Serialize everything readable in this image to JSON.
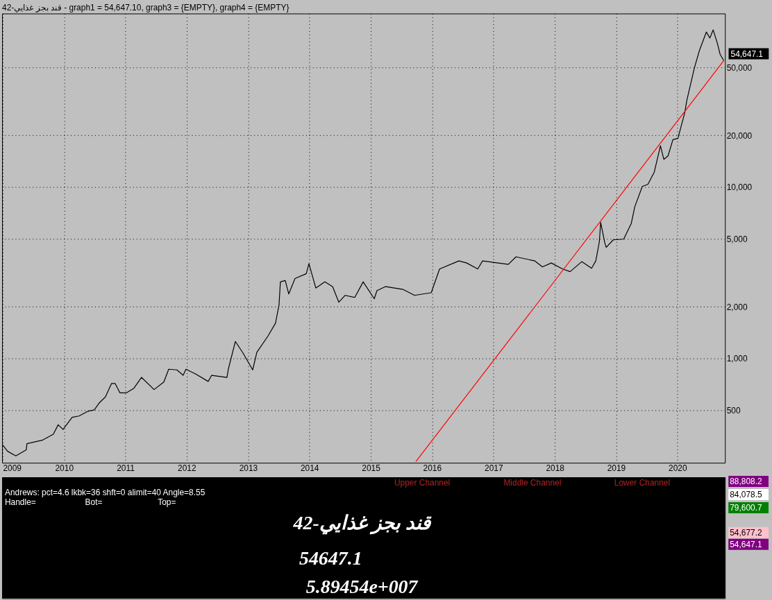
{
  "chart_data": [
    {
      "type": "line",
      "title": "42-قند بجز غذايي - graph1 = 54,647.10, graph3 = {EMPTY}, graph4 = {EMPTY}",
      "log": "y",
      "grid": true,
      "line_style": "solid",
      "marker": "none",
      "xlim": [
        "2008-12-28",
        "2020-10-10"
      ],
      "ylim": [
        246,
        103000
      ],
      "xticks": [
        "2009",
        "2010",
        "2011",
        "2012",
        "2013",
        "2014",
        "2015",
        "2016",
        "2017",
        "2018",
        "2019",
        "2020"
      ],
      "yticks": [
        500,
        {
          "value": 1000,
          "label": "1,000"
        },
        {
          "value": 2000,
          "label": "2,000"
        },
        {
          "value": 5000,
          "label": "5,000"
        },
        {
          "value": 10000,
          "label": "10,000"
        },
        {
          "value": 20000,
          "label": "20,000"
        },
        {
          "value": 50000,
          "label": "50,000"
        }
      ],
      "annotations": [
        {
          "text": "54,647.1",
          "x": "2020-10-03",
          "y": 54647.1
        }
      ],
      "series": [
        {
          "color": "#000000",
          "x": [
            "2009-01-01",
            "2009-01-30",
            "2009-03-20",
            "2009-05-21",
            "2009-05-25",
            "2009-08-24",
            "2009-10-29",
            "2009-11-27",
            "2009-12-26",
            "2010-02-18",
            "2010-03-31",
            "2010-05-24",
            "2010-06-30",
            "2010-07-29",
            "2010-09-04",
            "2010-10-11",
            "2010-11-01",
            "2010-11-30",
            "2011-01-06",
            "2011-02-21",
            "2011-04-07",
            "2011-06-21",
            "2011-08-18",
            "2011-09-16",
            "2011-11-04",
            "2011-12-11",
            "2011-12-28",
            "2012-02-24",
            "2012-05-08",
            "2012-05-29",
            "2012-08-28",
            "2012-09-05",
            "2012-10-17",
            "2012-12-01",
            "2013-01-28",
            "2013-02-22",
            "2013-04-29",
            "2013-06-13",
            "2013-07-04",
            "2013-07-12",
            "2013-08-10",
            "2013-08-31",
            "2013-10-07",
            "2013-12-13",
            "2013-12-29",
            "2014-02-08",
            "2014-04-03",
            "2014-05-19",
            "2014-06-25",
            "2014-08-01",
            "2014-09-28",
            "2014-11-17",
            "2015-01-22",
            "2015-02-07",
            "2015-03-29",
            "2015-07-10",
            "2015-09-19",
            "2015-12-27",
            "2016-02-15",
            "2016-06-09",
            "2016-07-25",
            "2016-09-29",
            "2016-10-28",
            "2017-03-30",
            "2017-05-15",
            "2017-09-03",
            "2017-10-19",
            "2017-12-11",
            "2018-02-16",
            "2018-04-02",
            "2018-06-11",
            "2018-08-08",
            "2018-09-02",
            "2018-09-23",
            "2018-10-01",
            "2018-10-26",
            "2018-11-03",
            "2018-12-15",
            "2019-02-15",
            "2019-04-01",
            "2019-04-22",
            "2019-06-06",
            "2019-07-09",
            "2019-08-16",
            "2019-09-22",
            "2019-10-12",
            "2019-11-06",
            "2019-12-05",
            "2020-01-04",
            "2020-02-14",
            "2020-02-26",
            "2020-04-11",
            "2020-05-10",
            "2020-06-21",
            "2020-07-12",
            "2020-08-01",
            "2020-08-26",
            "2020-09-11",
            "2020-10-03"
          ],
          "values": [
            312,
            287,
            270,
            293,
            318,
            333,
            361,
            410,
            385,
            453,
            461,
            492,
            501,
            549,
            596,
            714,
            714,
            629,
            629,
            670,
            775,
            658,
            728,
            865,
            857,
            797,
            865,
            811,
            734,
            797,
            775,
            865,
            1256,
            1077,
            857,
            1086,
            1350,
            1606,
            2052,
            2797,
            2850,
            2377,
            2926,
            3119,
            3574,
            2576,
            2797,
            2625,
            2128,
            2334,
            2270,
            2797,
            2228,
            2485,
            2625,
            2531,
            2334,
            2417,
            3326,
            3709,
            3606,
            3326,
            3709,
            3540,
            3917,
            3709,
            3420,
            3606,
            3326,
            3208,
            3673,
            3357,
            3709,
            4786,
            6226,
            4700,
            4446,
            4920,
            4966,
            6124,
            7674,
            10090,
            10370,
            12220,
            17420,
            14520,
            15200,
            18910,
            19270,
            27230,
            32080,
            49640,
            62250,
            80320,
            74130,
            82650,
            68870,
            59570,
            54647.1
          ]
        },
        {
          "color": "#ff0000",
          "x": [
            "2015-09-27",
            "2020-10-03"
          ],
          "values": [
            250,
            54647.1
          ]
        }
      ]
    },
    {
      "type": "other",
      "annotations": [
        "Upper Channel",
        "Middle Channel",
        "Lower Channel",
        "Andrews: pct=4.6 lkbk=36 shft=0 alimit=40 Angle=8.55",
        "Handle=",
        "Bot=",
        "Top=",
        "42-قند بجز غذايي",
        "54647.1",
        "5.89454e+007",
        "88,808.2",
        "84,078.5",
        "79,600.7",
        "54,677.2",
        "54,647.1"
      ]
    }
  ]
}
